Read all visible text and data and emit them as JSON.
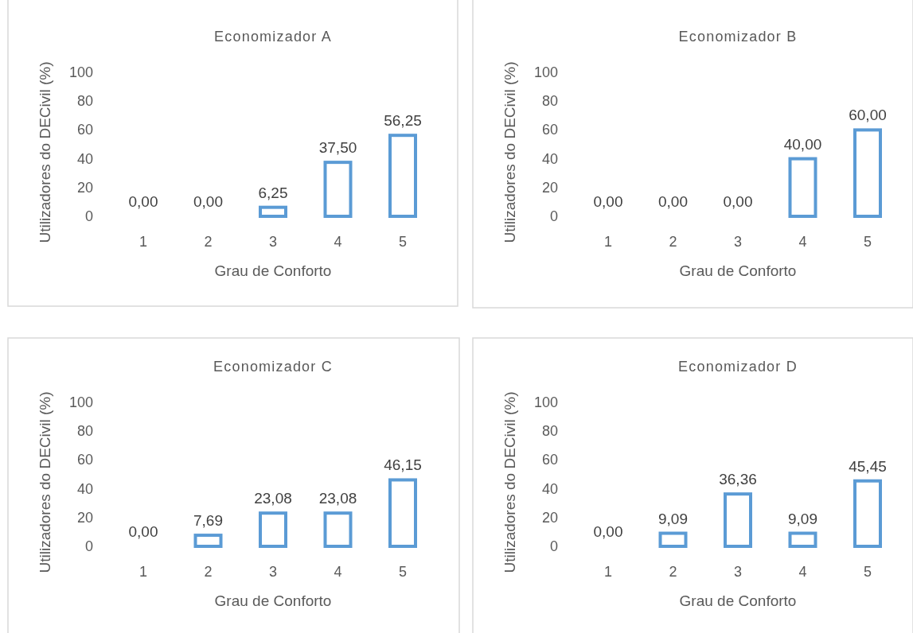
{
  "chart_data": [
    {
      "type": "bar",
      "title": "Economizador A",
      "xlabel": "Grau de Conforto",
      "ylabel": "Utilizadores do DECivil (%)",
      "categories": [
        "1",
        "2",
        "3",
        "4",
        "5"
      ],
      "values": [
        0,
        0,
        6.25,
        37.5,
        56.25
      ],
      "value_labels": [
        "0,00",
        "0,00",
        "6,25",
        "37,50",
        "56,25"
      ],
      "color": "#5b9bd5",
      "ylim": [
        0,
        100
      ],
      "yticks": [
        0,
        20,
        40,
        60,
        80,
        100
      ]
    },
    {
      "type": "bar",
      "title": "Economizador B",
      "xlabel": "Grau de Conforto",
      "ylabel": "Utilizadores do DECivil (%)",
      "categories": [
        "1",
        "2",
        "3",
        "4",
        "5"
      ],
      "values": [
        0,
        0,
        0,
        40,
        60
      ],
      "value_labels": [
        "0,00",
        "0,00",
        "0,00",
        "40,00",
        "60,00"
      ],
      "color": "#5b9bd5",
      "ylim": [
        0,
        100
      ],
      "yticks": [
        0,
        20,
        40,
        60,
        80,
        100
      ]
    },
    {
      "type": "bar",
      "title": "Economizador C",
      "xlabel": "Grau de Conforto",
      "ylabel": "Utilizadores do DECivil (%)",
      "categories": [
        "1",
        "2",
        "3",
        "4",
        "5"
      ],
      "values": [
        0,
        7.69,
        23.08,
        23.08,
        46.15
      ],
      "value_labels": [
        "0,00",
        "7,69",
        "23,08",
        "23,08",
        "46,15"
      ],
      "color": "#5b9bd5",
      "ylim": [
        0,
        100
      ],
      "yticks": [
        0,
        20,
        40,
        60,
        80,
        100
      ]
    },
    {
      "type": "bar",
      "title": "Economizador D",
      "xlabel": "Grau de Conforto",
      "ylabel": "Utilizadores do DECivil (%)",
      "categories": [
        "1",
        "2",
        "3",
        "4",
        "5"
      ],
      "values": [
        0,
        9.09,
        36.36,
        9.09,
        45.45
      ],
      "value_labels": [
        "0,00",
        "9,09",
        "36,36",
        "9,09",
        "45,45"
      ],
      "color": "#5b9bd5",
      "ylim": [
        0,
        100
      ],
      "yticks": [
        0,
        20,
        40,
        60,
        80,
        100
      ]
    }
  ]
}
